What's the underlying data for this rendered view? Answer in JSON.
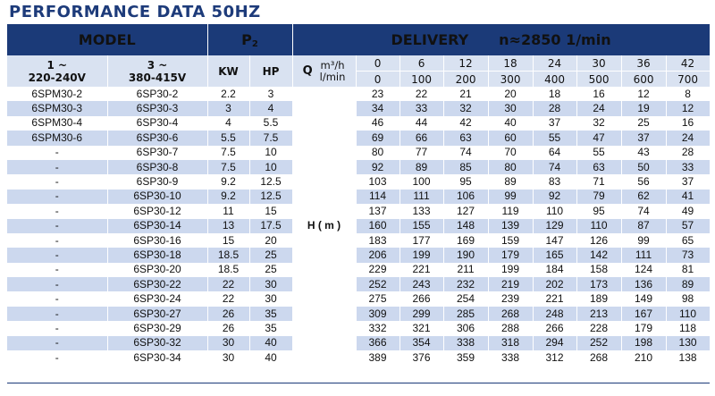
{
  "title": "PERFORMANCE DATA 50HZ",
  "header": {
    "model": "MODEL",
    "p2_main": "P",
    "p2_sub": "2",
    "delivery": "DELIVERY",
    "speed": "n≈2850 1/min"
  },
  "subheader": {
    "phase1_line1": "1 ~",
    "phase1_line2": "220-240V",
    "phase3_line1": "3 ~",
    "phase3_line2": "380-415V",
    "kw": "KW",
    "hp": "HP",
    "q_label": "Q",
    "unit_m3h": "m³/h",
    "unit_lmin": "l/min",
    "flow_m3h": [
      "0",
      "6",
      "12",
      "18",
      "24",
      "30",
      "36",
      "42"
    ],
    "flow_lmin": [
      "0",
      "100",
      "200",
      "300",
      "400",
      "500",
      "600",
      "700"
    ]
  },
  "head_label": "H ( m )",
  "rows": [
    {
      "single": "6SPM30-2",
      "three": "6SP30-2",
      "kw": "2.2",
      "hp": "3",
      "h": [
        "23",
        "22",
        "21",
        "20",
        "18",
        "16",
        "12",
        "8"
      ]
    },
    {
      "single": "6SPM30-3",
      "three": "6SP30-3",
      "kw": "3",
      "hp": "4",
      "h": [
        "34",
        "33",
        "32",
        "30",
        "28",
        "24",
        "19",
        "12"
      ]
    },
    {
      "single": "6SPM30-4",
      "three": "6SP30-4",
      "kw": "4",
      "hp": "5.5",
      "h": [
        "46",
        "44",
        "42",
        "40",
        "37",
        "32",
        "25",
        "16"
      ]
    },
    {
      "single": "6SPM30-6",
      "three": "6SP30-6",
      "kw": "5.5",
      "hp": "7.5",
      "h": [
        "69",
        "66",
        "63",
        "60",
        "55",
        "47",
        "37",
        "24"
      ]
    },
    {
      "single": "-",
      "three": "6SP30-7",
      "kw": "7.5",
      "hp": "10",
      "h": [
        "80",
        "77",
        "74",
        "70",
        "64",
        "55",
        "43",
        "28"
      ]
    },
    {
      "single": "-",
      "three": "6SP30-8",
      "kw": "7.5",
      "hp": "10",
      "h": [
        "92",
        "89",
        "85",
        "80",
        "74",
        "63",
        "50",
        "33"
      ]
    },
    {
      "single": "-",
      "three": "6SP30-9",
      "kw": "9.2",
      "hp": "12.5",
      "h": [
        "103",
        "100",
        "95",
        "89",
        "83",
        "71",
        "56",
        "37"
      ]
    },
    {
      "single": "-",
      "three": "6SP30-10",
      "kw": "9.2",
      "hp": "12.5",
      "h": [
        "114",
        "111",
        "106",
        "99",
        "92",
        "79",
        "62",
        "41"
      ]
    },
    {
      "single": "-",
      "three": "6SP30-12",
      "kw": "11",
      "hp": "15",
      "h": [
        "137",
        "133",
        "127",
        "119",
        "110",
        "95",
        "74",
        "49"
      ]
    },
    {
      "single": "-",
      "three": "6SP30-14",
      "kw": "13",
      "hp": "17.5",
      "h": [
        "160",
        "155",
        "148",
        "139",
        "129",
        "110",
        "87",
        "57"
      ]
    },
    {
      "single": "-",
      "three": "6SP30-16",
      "kw": "15",
      "hp": "20",
      "h": [
        "183",
        "177",
        "169",
        "159",
        "147",
        "126",
        "99",
        "65"
      ]
    },
    {
      "single": "-",
      "three": "6SP30-18",
      "kw": "18.5",
      "hp": "25",
      "h": [
        "206",
        "199",
        "190",
        "179",
        "165",
        "142",
        "111",
        "73"
      ]
    },
    {
      "single": "-",
      "three": "6SP30-20",
      "kw": "18.5",
      "hp": "25",
      "h": [
        "229",
        "221",
        "211",
        "199",
        "184",
        "158",
        "124",
        "81"
      ]
    },
    {
      "single": "-",
      "three": "6SP30-22",
      "kw": "22",
      "hp": "30",
      "h": [
        "252",
        "243",
        "232",
        "219",
        "202",
        "173",
        "136",
        "89"
      ]
    },
    {
      "single": "-",
      "three": "6SP30-24",
      "kw": "22",
      "hp": "30",
      "h": [
        "275",
        "266",
        "254",
        "239",
        "221",
        "189",
        "149",
        "98"
      ]
    },
    {
      "single": "-",
      "three": "6SP30-27",
      "kw": "26",
      "hp": "35",
      "h": [
        "309",
        "299",
        "285",
        "268",
        "248",
        "213",
        "167",
        "110"
      ]
    },
    {
      "single": "-",
      "three": "6SP30-29",
      "kw": "26",
      "hp": "35",
      "h": [
        "332",
        "321",
        "306",
        "288",
        "266",
        "228",
        "179",
        "118"
      ]
    },
    {
      "single": "-",
      "three": "6SP30-32",
      "kw": "30",
      "hp": "40",
      "h": [
        "366",
        "354",
        "338",
        "318",
        "294",
        "252",
        "198",
        "130"
      ]
    },
    {
      "single": "-",
      "three": "6SP30-34",
      "kw": "30",
      "hp": "40",
      "h": [
        "389",
        "376",
        "359",
        "338",
        "312",
        "268",
        "210",
        "138"
      ]
    }
  ],
  "colors": {
    "header_bg": "#1b3a78",
    "title": "#1d3b7a",
    "band": "#ccd8ee",
    "subheader_bg": "#d9e2f1"
  }
}
